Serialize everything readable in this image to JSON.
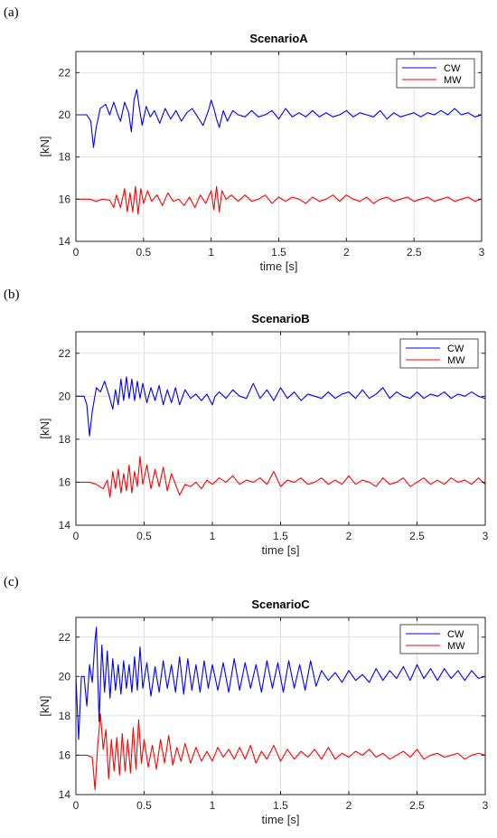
{
  "chart_data": [
    {
      "type": "line",
      "panel_label": "(a)",
      "title": "ScenarioA",
      "xlabel": "time [s]",
      "ylabel": "[kN]",
      "xlim": [
        0,
        3
      ],
      "ylim": [
        14,
        23
      ],
      "xticks": [
        0,
        0.5,
        1,
        1.5,
        2,
        2.5,
        3
      ],
      "xtick_labels": [
        "0",
        "0.5",
        "1",
        "1.5",
        "2",
        "2.5",
        "3"
      ],
      "yticks": [
        14,
        16,
        18,
        20,
        22
      ],
      "ytick_labels": [
        "14",
        "16",
        "18",
        "20",
        "22"
      ],
      "grid": true,
      "legend_position": "top-right",
      "series": [
        {
          "name": "CW",
          "color": "#0000ff",
          "x": [
            0,
            0.08,
            0.11,
            0.13,
            0.15,
            0.18,
            0.22,
            0.25,
            0.28,
            0.31,
            0.33,
            0.36,
            0.39,
            0.41,
            0.43,
            0.45,
            0.47,
            0.49,
            0.52,
            0.55,
            0.58,
            0.62,
            0.66,
            0.7,
            0.74,
            0.78,
            0.82,
            0.86,
            0.9,
            0.94,
            0.98,
            1.0,
            1.02,
            1.04,
            1.06,
            1.09,
            1.12,
            1.16,
            1.2,
            1.25,
            1.3,
            1.35,
            1.4,
            1.45,
            1.5,
            1.55,
            1.6,
            1.65,
            1.7,
            1.75,
            1.8,
            1.85,
            1.9,
            1.95,
            2.0,
            2.05,
            2.1,
            2.15,
            2.2,
            2.25,
            2.3,
            2.35,
            2.4,
            2.45,
            2.5,
            2.55,
            2.6,
            2.65,
            2.7,
            2.75,
            2.8,
            2.85,
            2.9,
            2.95,
            3.0
          ],
          "y": [
            20.0,
            20.0,
            19.7,
            18.45,
            19.4,
            20.3,
            20.5,
            20.0,
            20.6,
            20.0,
            19.7,
            20.6,
            20.1,
            19.2,
            20.7,
            21.2,
            20.3,
            19.5,
            20.4,
            19.9,
            20.2,
            19.6,
            20.3,
            19.8,
            20.2,
            19.7,
            20.1,
            20.3,
            19.9,
            19.5,
            20.2,
            20.7,
            20.3,
            19.8,
            19.4,
            20.2,
            19.7,
            20.2,
            20.0,
            19.9,
            20.2,
            19.9,
            20.0,
            20.2,
            19.8,
            20.3,
            19.9,
            20.1,
            19.9,
            20.2,
            19.9,
            20.1,
            19.9,
            20.0,
            20.2,
            19.9,
            20.1,
            20.0,
            19.9,
            20.2,
            19.8,
            20.1,
            19.9,
            20.0,
            20.1,
            19.9,
            20.1,
            20.0,
            20.2,
            20.0,
            20.3,
            20.0,
            20.1,
            19.9,
            20.0
          ]
        },
        {
          "name": "MW",
          "color": "#ff0000",
          "x": [
            0,
            0.1,
            0.15,
            0.2,
            0.25,
            0.28,
            0.3,
            0.33,
            0.36,
            0.38,
            0.4,
            0.42,
            0.44,
            0.46,
            0.48,
            0.5,
            0.53,
            0.56,
            0.6,
            0.64,
            0.68,
            0.72,
            0.76,
            0.8,
            0.84,
            0.88,
            0.92,
            0.96,
            1.0,
            1.02,
            1.04,
            1.06,
            1.08,
            1.11,
            1.15,
            1.2,
            1.25,
            1.3,
            1.35,
            1.4,
            1.45,
            1.5,
            1.55,
            1.6,
            1.65,
            1.7,
            1.75,
            1.8,
            1.85,
            1.9,
            1.95,
            2.0,
            2.05,
            2.1,
            2.15,
            2.2,
            2.25,
            2.3,
            2.35,
            2.4,
            2.45,
            2.5,
            2.55,
            2.6,
            2.65,
            2.7,
            2.75,
            2.8,
            2.85,
            2.9,
            2.95,
            3.0
          ],
          "y": [
            16.0,
            16.0,
            15.9,
            16.0,
            15.95,
            15.6,
            16.2,
            15.6,
            16.5,
            15.4,
            16.3,
            15.4,
            16.6,
            15.3,
            16.5,
            15.8,
            16.4,
            15.9,
            16.2,
            15.7,
            16.3,
            15.9,
            16.0,
            15.7,
            16.1,
            15.6,
            16.2,
            15.8,
            16.4,
            15.5,
            16.6,
            15.4,
            16.4,
            16.0,
            16.2,
            15.9,
            16.2,
            15.9,
            16.0,
            16.2,
            15.8,
            16.1,
            15.9,
            16.1,
            16.0,
            15.8,
            16.1,
            15.9,
            16.0,
            16.2,
            15.9,
            16.2,
            16.0,
            15.9,
            16.1,
            15.8,
            16.0,
            16.1,
            15.9,
            16.0,
            16.1,
            15.9,
            16.0,
            16.1,
            15.9,
            16.0,
            16.1,
            15.9,
            16.0,
            16.1,
            15.9,
            16.0
          ]
        }
      ]
    },
    {
      "type": "line",
      "panel_label": "(b)",
      "title": "ScenarioB",
      "xlabel": "time [s]",
      "ylabel": "[kN]",
      "xlim": [
        0,
        3
      ],
      "ylim": [
        14,
        23
      ],
      "xticks": [
        0,
        0.5,
        1,
        1.5,
        2,
        2.5,
        3
      ],
      "xtick_labels": [
        "0",
        "0.5",
        "1",
        "1.5",
        "2",
        "2.5",
        "3"
      ],
      "yticks": [
        14,
        16,
        18,
        20,
        22
      ],
      "ytick_labels": [
        "14",
        "16",
        "18",
        "20",
        "22"
      ],
      "grid": true,
      "legend_position": "top-right",
      "series": [
        {
          "name": "CW",
          "color": "#0000ff",
          "x": [
            0,
            0.06,
            0.08,
            0.1,
            0.12,
            0.15,
            0.18,
            0.21,
            0.24,
            0.27,
            0.29,
            0.31,
            0.33,
            0.35,
            0.37,
            0.39,
            0.41,
            0.43,
            0.45,
            0.47,
            0.49,
            0.52,
            0.55,
            0.58,
            0.61,
            0.64,
            0.67,
            0.7,
            0.73,
            0.76,
            0.8,
            0.84,
            0.88,
            0.92,
            0.96,
            1.0,
            1.02,
            1.05,
            1.1,
            1.15,
            1.2,
            1.25,
            1.3,
            1.35,
            1.4,
            1.45,
            1.5,
            1.55,
            1.6,
            1.65,
            1.7,
            1.75,
            1.8,
            1.85,
            1.9,
            1.95,
            2.0,
            2.05,
            2.1,
            2.15,
            2.2,
            2.25,
            2.3,
            2.35,
            2.4,
            2.45,
            2.5,
            2.55,
            2.6,
            2.65,
            2.7,
            2.75,
            2.8,
            2.85,
            2.9,
            2.95,
            3.0
          ],
          "y": [
            20.0,
            20.0,
            19.6,
            18.15,
            19.3,
            20.4,
            20.2,
            20.7,
            20.1,
            19.4,
            20.3,
            19.6,
            20.8,
            19.8,
            20.9,
            19.9,
            20.8,
            19.8,
            20.7,
            19.9,
            20.6,
            19.7,
            20.4,
            19.8,
            20.5,
            19.6,
            20.3,
            19.7,
            20.4,
            19.6,
            20.3,
            19.9,
            20.1,
            19.8,
            20.1,
            19.6,
            20.0,
            20.2,
            19.9,
            20.3,
            20.0,
            19.9,
            20.6,
            19.9,
            20.3,
            19.8,
            20.4,
            19.9,
            20.2,
            19.8,
            20.1,
            20.0,
            19.9,
            20.2,
            19.9,
            20.1,
            20.2,
            19.9,
            20.3,
            19.9,
            20.1,
            20.4,
            19.9,
            20.2,
            20.0,
            19.9,
            20.2,
            19.9,
            20.1,
            20.0,
            20.2,
            19.9,
            20.1,
            20.0,
            20.2,
            20.0,
            19.9
          ]
        },
        {
          "name": "MW",
          "color": "#ff0000",
          "x": [
            0,
            0.1,
            0.15,
            0.2,
            0.23,
            0.25,
            0.27,
            0.29,
            0.31,
            0.33,
            0.35,
            0.37,
            0.39,
            0.41,
            0.43,
            0.45,
            0.47,
            0.49,
            0.52,
            0.55,
            0.58,
            0.61,
            0.64,
            0.67,
            0.7,
            0.73,
            0.76,
            0.8,
            0.84,
            0.88,
            0.92,
            0.96,
            1.0,
            1.05,
            1.1,
            1.15,
            1.2,
            1.25,
            1.3,
            1.35,
            1.4,
            1.45,
            1.5,
            1.55,
            1.6,
            1.65,
            1.7,
            1.75,
            1.8,
            1.85,
            1.9,
            1.95,
            2.0,
            2.05,
            2.1,
            2.15,
            2.2,
            2.25,
            2.3,
            2.35,
            2.4,
            2.45,
            2.5,
            2.55,
            2.6,
            2.65,
            2.7,
            2.75,
            2.8,
            2.85,
            2.9,
            2.95,
            3.0
          ],
          "y": [
            16.0,
            16.0,
            15.9,
            15.7,
            16.1,
            15.3,
            16.5,
            15.7,
            16.6,
            15.5,
            16.4,
            15.6,
            16.8,
            15.5,
            16.5,
            15.8,
            17.2,
            15.9,
            16.8,
            15.7,
            16.6,
            15.8,
            16.7,
            15.6,
            16.4,
            15.9,
            15.4,
            15.9,
            15.8,
            16.0,
            15.7,
            16.1,
            15.9,
            16.2,
            16.0,
            16.3,
            15.9,
            16.1,
            16.0,
            16.2,
            15.9,
            16.5,
            15.8,
            16.1,
            16.0,
            16.2,
            15.9,
            16.0,
            16.2,
            15.9,
            16.1,
            15.9,
            16.3,
            15.9,
            16.1,
            16.0,
            15.8,
            16.2,
            15.9,
            16.0,
            16.2,
            15.8,
            16.0,
            16.2,
            15.9,
            16.1,
            15.9,
            16.2,
            16.0,
            16.1,
            15.9,
            16.2,
            15.9
          ]
        }
      ]
    },
    {
      "type": "line",
      "panel_label": "(c)",
      "title": "ScenarioC",
      "xlabel": "time [s]",
      "ylabel": "[kN]",
      "xlim": [
        0,
        3
      ],
      "ylim": [
        14,
        23
      ],
      "xticks": [
        0,
        0.5,
        1,
        1.5,
        2,
        2.5,
        3
      ],
      "xtick_labels": [
        "0",
        "0.5",
        "1",
        "1.5",
        "2",
        "2.5",
        "3"
      ],
      "yticks": [
        14,
        16,
        18,
        20,
        22
      ],
      "ytick_labels": [
        "14",
        "16",
        "18",
        "20",
        "22"
      ],
      "grid": true,
      "legend_position": "top-right",
      "series": [
        {
          "name": "CW",
          "color": "#0000ff",
          "x": [
            0,
            0.02,
            0.04,
            0.06,
            0.08,
            0.1,
            0.12,
            0.14,
            0.15,
            0.17,
            0.19,
            0.21,
            0.23,
            0.25,
            0.27,
            0.29,
            0.31,
            0.33,
            0.35,
            0.37,
            0.39,
            0.41,
            0.43,
            0.45,
            0.47,
            0.49,
            0.52,
            0.55,
            0.58,
            0.61,
            0.64,
            0.67,
            0.7,
            0.73,
            0.76,
            0.79,
            0.82,
            0.85,
            0.88,
            0.91,
            0.94,
            0.97,
            1.0,
            1.04,
            1.08,
            1.12,
            1.16,
            1.2,
            1.24,
            1.28,
            1.32,
            1.36,
            1.4,
            1.44,
            1.48,
            1.52,
            1.56,
            1.6,
            1.64,
            1.68,
            1.72,
            1.76,
            1.8,
            1.85,
            1.9,
            1.95,
            2.0,
            2.05,
            2.1,
            2.15,
            2.2,
            2.25,
            2.3,
            2.35,
            2.4,
            2.45,
            2.5,
            2.55,
            2.6,
            2.65,
            2.7,
            2.75,
            2.8,
            2.85,
            2.9,
            2.95,
            3.0
          ],
          "y": [
            20.0,
            16.8,
            20.0,
            20.0,
            18.5,
            20.6,
            19.7,
            21.8,
            22.5,
            17.7,
            21.6,
            19.2,
            21.3,
            18.9,
            20.9,
            19.3,
            20.6,
            19.1,
            20.8,
            19.4,
            20.6,
            19.2,
            21.0,
            19.3,
            21.5,
            19.4,
            20.7,
            19.0,
            20.5,
            19.2,
            20.8,
            19.4,
            20.6,
            19.2,
            21.0,
            19.1,
            20.9,
            19.3,
            20.6,
            19.2,
            20.8,
            19.4,
            20.6,
            19.3,
            20.7,
            19.2,
            20.9,
            19.3,
            20.7,
            19.4,
            20.6,
            19.2,
            20.8,
            19.4,
            20.7,
            19.2,
            20.8,
            19.4,
            20.6,
            19.3,
            20.8,
            19.5,
            20.3,
            19.8,
            20.2,
            19.7,
            20.3,
            19.8,
            20.1,
            19.7,
            20.4,
            19.8,
            20.3,
            19.9,
            20.5,
            19.8,
            20.6,
            19.9,
            20.4,
            19.8,
            20.4,
            19.9,
            20.3,
            19.8,
            20.3,
            19.9,
            20.0
          ]
        },
        {
          "name": "MW",
          "color": "#ff0000",
          "x": [
            0,
            0.08,
            0.12,
            0.14,
            0.16,
            0.18,
            0.2,
            0.22,
            0.24,
            0.26,
            0.28,
            0.3,
            0.32,
            0.34,
            0.36,
            0.38,
            0.4,
            0.42,
            0.44,
            0.46,
            0.48,
            0.5,
            0.53,
            0.56,
            0.59,
            0.62,
            0.65,
            0.68,
            0.71,
            0.74,
            0.77,
            0.8,
            0.84,
            0.88,
            0.92,
            0.96,
            1.0,
            1.04,
            1.08,
            1.12,
            1.16,
            1.2,
            1.24,
            1.28,
            1.32,
            1.36,
            1.4,
            1.45,
            1.5,
            1.55,
            1.6,
            1.65,
            1.7,
            1.75,
            1.8,
            1.85,
            1.9,
            1.95,
            2.0,
            2.05,
            2.1,
            2.15,
            2.2,
            2.25,
            2.3,
            2.35,
            2.4,
            2.45,
            2.5,
            2.55,
            2.6,
            2.65,
            2.7,
            2.75,
            2.8,
            2.85,
            2.9,
            2.95,
            3.0
          ],
          "y": [
            16.0,
            16.0,
            15.9,
            14.25,
            16.5,
            18.1,
            16.3,
            17.3,
            14.8,
            16.8,
            15.2,
            16.9,
            15.0,
            17.1,
            15.2,
            16.8,
            15.1,
            17.4,
            15.3,
            17.8,
            15.6,
            16.8,
            15.4,
            16.5,
            15.3,
            16.8,
            15.6,
            17.0,
            15.5,
            16.4,
            15.7,
            16.6,
            15.6,
            16.4,
            15.7,
            16.2,
            15.7,
            16.4,
            15.9,
            16.3,
            15.8,
            16.4,
            15.8,
            16.5,
            15.6,
            16.2,
            15.8,
            16.5,
            15.7,
            16.3,
            15.8,
            16.2,
            15.9,
            16.3,
            15.8,
            16.4,
            15.8,
            16.1,
            15.9,
            16.2,
            16.0,
            16.3,
            15.9,
            16.1,
            15.8,
            16.0,
            16.2,
            15.9,
            16.3,
            15.8,
            16.0,
            16.1,
            15.9,
            16.0,
            16.1,
            15.8,
            16.0,
            16.1,
            16.0
          ]
        }
      ]
    }
  ]
}
